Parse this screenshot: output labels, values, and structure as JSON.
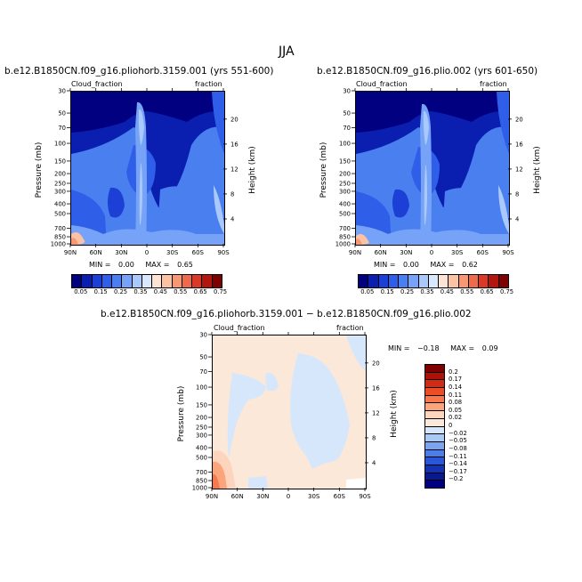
{
  "figure_title": "JJA",
  "chart_data": [
    {
      "type": "heatmap",
      "title": "b.e12.B1850CN.f09_g16.pliohorb.3159.001 (yrs 551-600)",
      "left_subtitle": "Cloud_fraction",
      "right_subtitle": "fraction",
      "ylabel": "Pressure (mb)",
      "ylabel_right": "Height (km)",
      "x_ticks": [
        "90N",
        "60N",
        "30N",
        "0",
        "30S",
        "60S",
        "90S"
      ],
      "y_ticks": [
        "30",
        "50",
        "70",
        "100",
        "150",
        "200",
        "250",
        "300",
        "400",
        "500",
        "700",
        "850",
        "1000"
      ],
      "y_ticks_right": [
        "20",
        "16",
        "12",
        "8",
        "4"
      ],
      "stats": {
        "min": "0.00",
        "max": "0.65"
      },
      "min_label": "MIN =",
      "max_label": "MAX =",
      "colorbar_labels": [
        "0.05",
        "0.15",
        "0.25",
        "0.35",
        "0.45",
        "0.55",
        "0.65",
        "0.75"
      ]
    },
    {
      "type": "heatmap",
      "title": "b.e12.B1850CN.f09_g16.plio.002 (yrs 601-650)",
      "left_subtitle": "Cloud_fraction",
      "right_subtitle": "fraction",
      "ylabel": "Pressure (mb)",
      "ylabel_right": "Height (km)",
      "x_ticks": [
        "90N",
        "60N",
        "30N",
        "0",
        "30S",
        "60S",
        "90S"
      ],
      "y_ticks": [
        "30",
        "50",
        "70",
        "100",
        "150",
        "200",
        "250",
        "300",
        "400",
        "500",
        "700",
        "850",
        "1000"
      ],
      "y_ticks_right": [
        "20",
        "16",
        "12",
        "8",
        "4"
      ],
      "stats": {
        "min": "0.00",
        "max": "0.62"
      },
      "min_label": "MIN =",
      "max_label": "MAX =",
      "colorbar_labels": [
        "0.05",
        "0.15",
        "0.25",
        "0.35",
        "0.45",
        "0.55",
        "0.65",
        "0.75"
      ]
    },
    {
      "type": "heatmap",
      "title": "b.e12.B1850CN.f09_g16.pliohorb.3159.001 − b.e12.B1850CN.f09_g16.plio.002",
      "left_subtitle": "Cloud_fraction",
      "right_subtitle": "fraction",
      "ylabel": "Pressure (mb)",
      "ylabel_right": "Height (km)",
      "x_ticks": [
        "90N",
        "60N",
        "30N",
        "0",
        "30S",
        "60S",
        "90S"
      ],
      "y_ticks": [
        "30",
        "50",
        "70",
        "100",
        "150",
        "200",
        "250",
        "300",
        "400",
        "500",
        "700",
        "850",
        "1000"
      ],
      "y_ticks_right": [
        "20",
        "16",
        "12",
        "8",
        "4"
      ],
      "stats": {
        "min": "−0.18",
        "max": "0.09"
      },
      "min_label": "MIN =",
      "max_label": "MAX =",
      "colorbar_labels": [
        "0.2",
        "0.17",
        "0.14",
        "0.11",
        "0.08",
        "0.05",
        "0.02",
        "0",
        "−0.02",
        "−0.05",
        "−0.08",
        "−0.11",
        "−0.14",
        "−0.17",
        "−0.2"
      ]
    }
  ],
  "colors": {
    "seq": [
      "#000080",
      "#0a1fb0",
      "#1c3fd6",
      "#2f5fe8",
      "#4a7ff0",
      "#76a3f7",
      "#a9c8fb",
      "#d9e8fd",
      "#fde3d3",
      "#fbc2a3",
      "#f79874",
      "#ef6a4a",
      "#d93a28",
      "#b2170f",
      "#7f0000"
    ],
    "div": [
      "#7f0000",
      "#ad1208",
      "#d22a14",
      "#ec4d24",
      "#f8784b",
      "#fca57c",
      "#fdd4bd",
      "#fbe8d9",
      "#d6e7fb",
      "#a9c9f6",
      "#7aa4ef",
      "#4d7de8",
      "#2a56d8",
      "#1432b6",
      "#0a1890",
      "#000080"
    ]
  }
}
